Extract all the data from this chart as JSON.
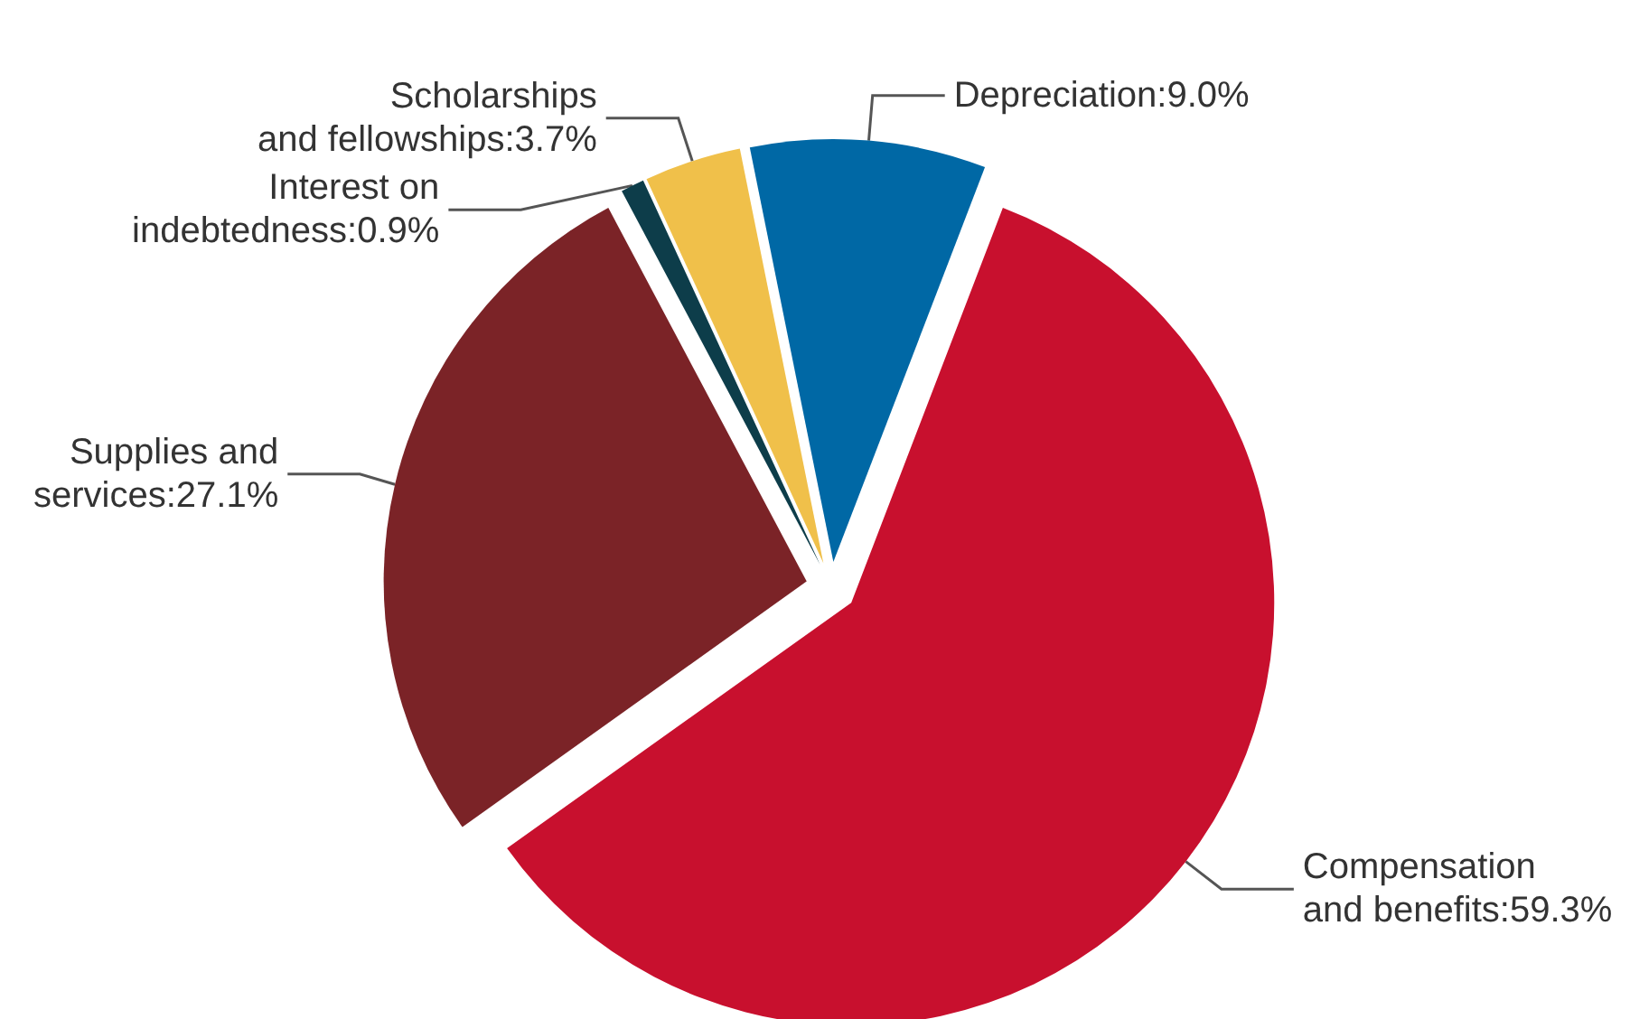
{
  "chart_data": {
    "type": "pie",
    "categories": [
      "Compensation\nand benefits",
      "Supplies and\nservices",
      "Interest on\nindebtedness",
      "Scholarships\nand fellowships",
      "Depreciation"
    ],
    "values": [
      59.3,
      27.1,
      0.9,
      3.7,
      9.0
    ],
    "value_labels": [
      "59.3%",
      "27.1%",
      "0.9%",
      "3.7%",
      "9.0%"
    ],
    "colors": [
      "#c8102e",
      "#7b2327",
      "#0d3d4a",
      "#f0c04a",
      "#0068a5"
    ],
    "legend": false
  }
}
